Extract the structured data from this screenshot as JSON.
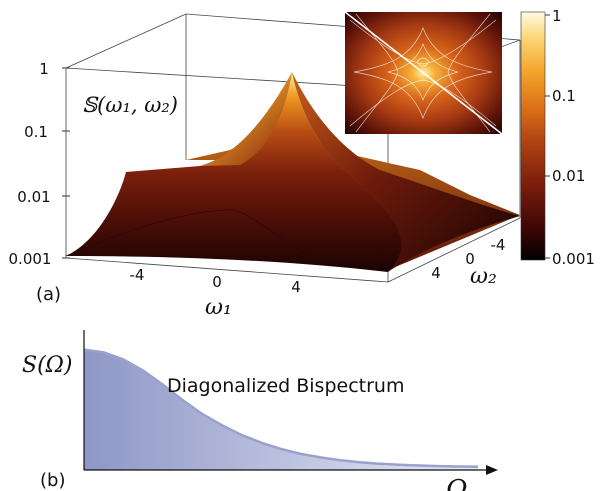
{
  "chart_data": [
    {
      "panel": "(a)",
      "type": "surface",
      "z_label": "𝕊(ω₁, ω₂)",
      "xlabel": "ω₁",
      "ylabel": "ω₂",
      "z_scale": "log",
      "z_ticks": [
        "1",
        "0.1",
        "0.01",
        "0.001"
      ],
      "x_ticks": [
        "-4",
        "0",
        "4"
      ],
      "y_ticks": [
        "-4",
        "0",
        "4"
      ],
      "colorbar": {
        "scale": "log",
        "ticks": [
          "1",
          "0.1",
          "0.01",
          "0.001"
        ],
        "colormap": [
          "#000000",
          "#3a0606",
          "#7a1c0c",
          "#b04412",
          "#de7218",
          "#f4a52a",
          "#fcd87a",
          "#fffbe6"
        ]
      },
      "inset": "contour map with diagonal line",
      "peak": {
        "x": 0,
        "y": 0,
        "z": 1
      }
    },
    {
      "panel": "(b)",
      "type": "area",
      "ylabel": "S(Ω)",
      "xlabel": "Ω",
      "annotation": "Diagonalized Bispectrum",
      "fill_color": "#8e96c6",
      "x": [
        0,
        0.5,
        1,
        1.5,
        2,
        2.5,
        3,
        3.5,
        4,
        4.5,
        5,
        5.5,
        6,
        6.5,
        7,
        7.5,
        8,
        8.5,
        9,
        9.5,
        10
      ],
      "y": [
        0.86,
        0.84,
        0.79,
        0.71,
        0.61,
        0.5,
        0.4,
        0.32,
        0.25,
        0.195,
        0.15,
        0.115,
        0.09,
        0.07,
        0.055,
        0.045,
        0.037,
        0.032,
        0.028,
        0.025,
        0.023
      ]
    }
  ]
}
